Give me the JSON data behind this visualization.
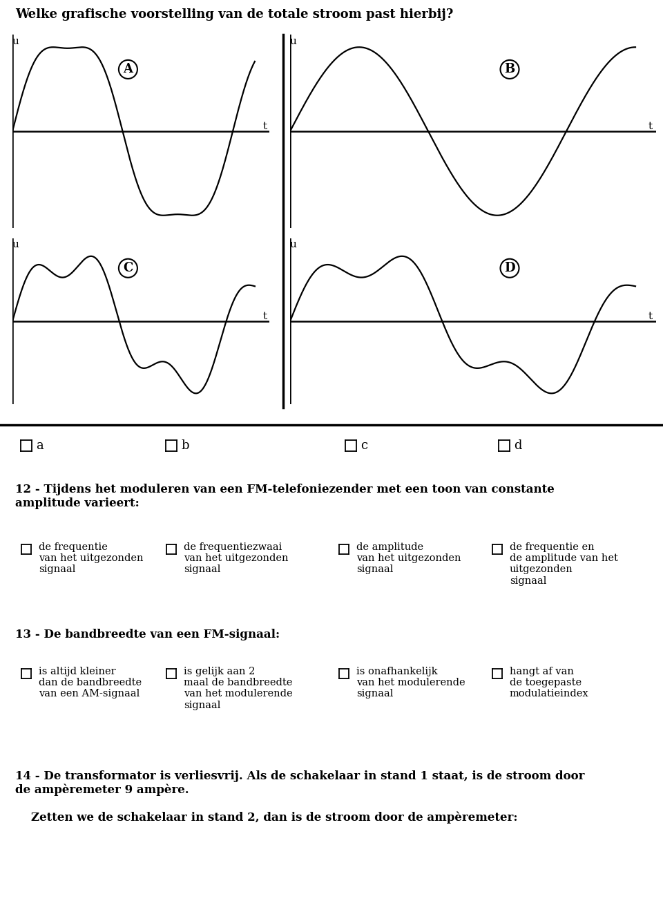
{
  "title": "Welke grafische voorstelling van de totale stroom past hierbij?",
  "graph_labels": [
    "A",
    "B",
    "C",
    "D"
  ],
  "radio_labels_abcd": [
    "a",
    "b",
    "c",
    "d"
  ],
  "q12_title": "12 - Tijdens het moduleren van een FM-telefoniezender met een toon van constante\namplitude varieert:",
  "q12_options": [
    "de frequentie\nvan het uitgezonden\nsignaal",
    "de frequentiezwaai\nvan het uitgezonden\nsignaal",
    "de amplitude\nvan het uitgezonden\nsignaal",
    "de frequentie en\nde amplitude van het\nuitgezonden\nsignaal"
  ],
  "q13_title": "13 - De bandbreedte van een FM-signaal:",
  "q13_options": [
    "is altijd kleiner\ndan de bandbreedte\nvan een AM-signaal",
    "is gelijk aan 2\nmaal de bandbreedte\nvan het modulerende\nsignaal",
    "is onafhankelijk\nvan het modulerende\nsignaal",
    "hangt af van\nde toegepaste\nmodulatieindex"
  ],
  "q14_title": "14 - De transformator is verliesvrij. Als de schakelaar in stand 1 staat, is de stroom door\nde ampèremeter 9 ampère.",
  "q14_subtitle": "    Zetten we de schakelaar in stand 2, dan is de stroom door de ampèremeter:",
  "bg_color": "#ffffff",
  "font_family": "DejaVu Serif"
}
